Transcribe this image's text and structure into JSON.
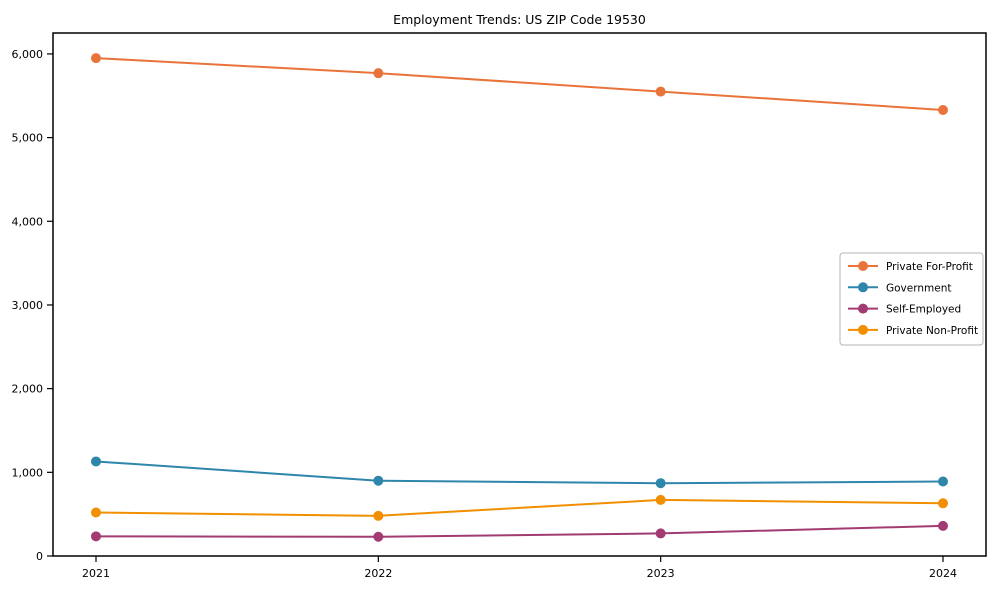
{
  "chart_data": {
    "type": "line",
    "title": "Employment Trends: US ZIP Code 19530",
    "x": [
      2021,
      2022,
      2023,
      2024
    ],
    "xtick_labels": [
      "2021",
      "2022",
      "2023",
      "2024"
    ],
    "yticks": [
      0,
      1000,
      2000,
      3000,
      4000,
      5000,
      6000
    ],
    "ytick_labels": [
      "0",
      "1,000",
      "2,000",
      "3,000",
      "4,000",
      "5,000",
      "6,000"
    ],
    "ylim": [
      0,
      6250
    ],
    "grid": false,
    "marker": "o",
    "legend_position": "center right",
    "series": [
      {
        "name": "Private For-Profit",
        "color": "#E8743B",
        "values": [
          5950,
          5770,
          5550,
          5330
        ]
      },
      {
        "name": "Government",
        "color": "#2E86AB",
        "values": [
          1130,
          900,
          870,
          890
        ]
      },
      {
        "name": "Self-Employed",
        "color": "#A23B72",
        "values": [
          235,
          230,
          270,
          360
        ]
      },
      {
        "name": "Private Non-Profit",
        "color": "#F18F01",
        "values": [
          520,
          480,
          670,
          630
        ]
      }
    ],
    "colors": {
      "axis": "#000000",
      "text": "#000000",
      "legend_border": "#b5b5b5",
      "background": "#ffffff"
    }
  }
}
